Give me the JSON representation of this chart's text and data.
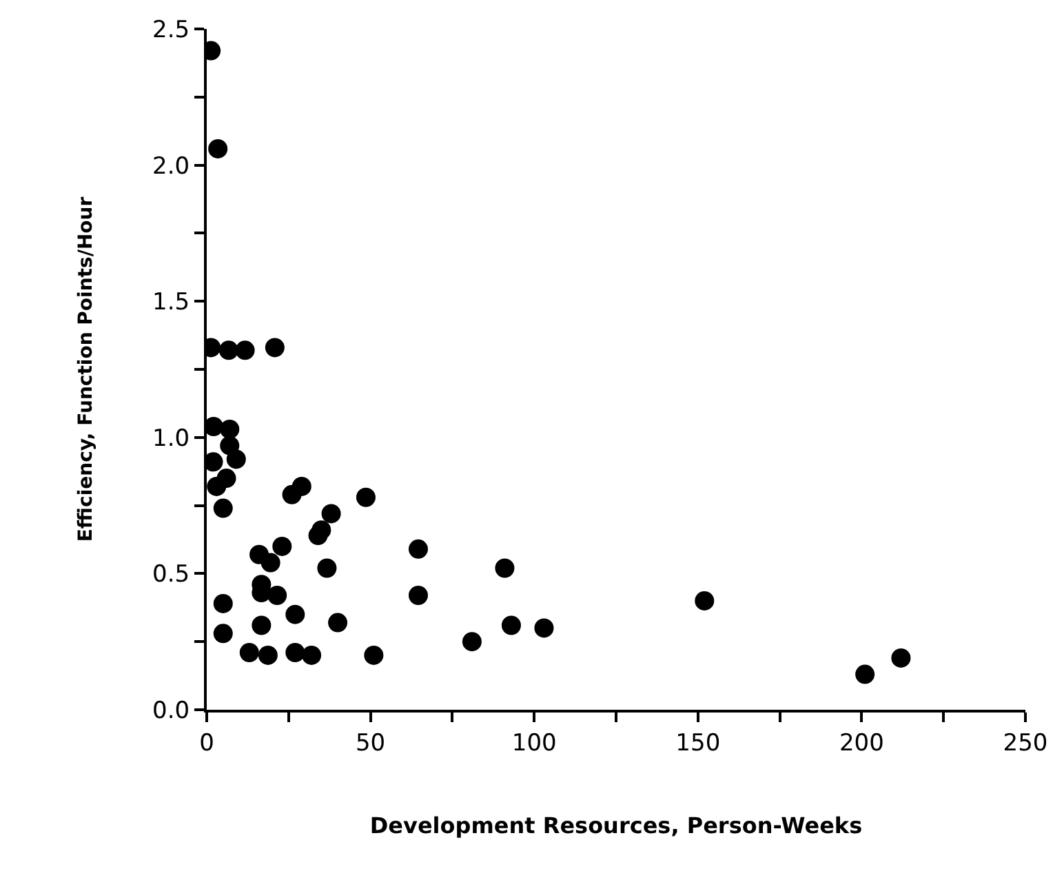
{
  "chart_data": {
    "type": "scatter",
    "xlabel": "Development Resources, Person-Weeks",
    "ylabel": "Efficiency, Function Points/Hour",
    "x": [
      1.3,
      3.4,
      1.3,
      6.7,
      11.7,
      20.8,
      2.1,
      7,
      7,
      2,
      9,
      6,
      3,
      5,
      26,
      29,
      48.6,
      38,
      35,
      34,
      23,
      16,
      19.5,
      36.7,
      64.6,
      91,
      16.7,
      16.7,
      21.5,
      64.6,
      5,
      27,
      16.7,
      40,
      5,
      93,
      81,
      13,
      18.7,
      27,
      32,
      51,
      103,
      152,
      201,
      212
    ],
    "series": [
      {
        "color": "#000000",
        "values": [
          2.42,
          2.06,
          1.33,
          1.32,
          1.32,
          1.33,
          1.04,
          1.03,
          0.97,
          0.91,
          0.92,
          0.85,
          0.82,
          0.74,
          0.79,
          0.82,
          0.78,
          0.72,
          0.66,
          0.64,
          0.6,
          0.57,
          0.54,
          0.52,
          0.59,
          0.52,
          0.46,
          0.43,
          0.42,
          0.42,
          0.39,
          0.35,
          0.31,
          0.32,
          0.28,
          0.31,
          0.25,
          0.21,
          0.2,
          0.21,
          0.2,
          0.2,
          0.3,
          0.4,
          0.13,
          0.19
        ]
      }
    ],
    "xlim": [
      0,
      250
    ],
    "xticks": [
      0,
      {
        "value": 25,
        "label": null
      },
      50,
      {
        "value": 75,
        "label": null
      },
      100,
      {
        "value": 125,
        "label": null
      },
      150,
      {
        "value": 175,
        "label": null
      },
      200,
      {
        "value": 225,
        "label": null
      },
      250
    ],
    "ylim": [
      0,
      2.5
    ],
    "yticks": [
      "0.0",
      {
        "value": 0.25,
        "label": null
      },
      {
        "value": 0.5,
        "label": "0.5"
      },
      {
        "value": 0.75,
        "label": null
      },
      {
        "value": 1,
        "label": "1.0"
      },
      {
        "value": 1.25,
        "label": null
      },
      {
        "value": 1.5,
        "label": "1.5"
      },
      {
        "value": 1.75,
        "label": null
      },
      {
        "value": 2,
        "label": "2.0"
      },
      {
        "value": 2.25,
        "label": null
      },
      {
        "value": 2.5,
        "label": "2.5"
      }
    ],
    "marker": "circle"
  }
}
